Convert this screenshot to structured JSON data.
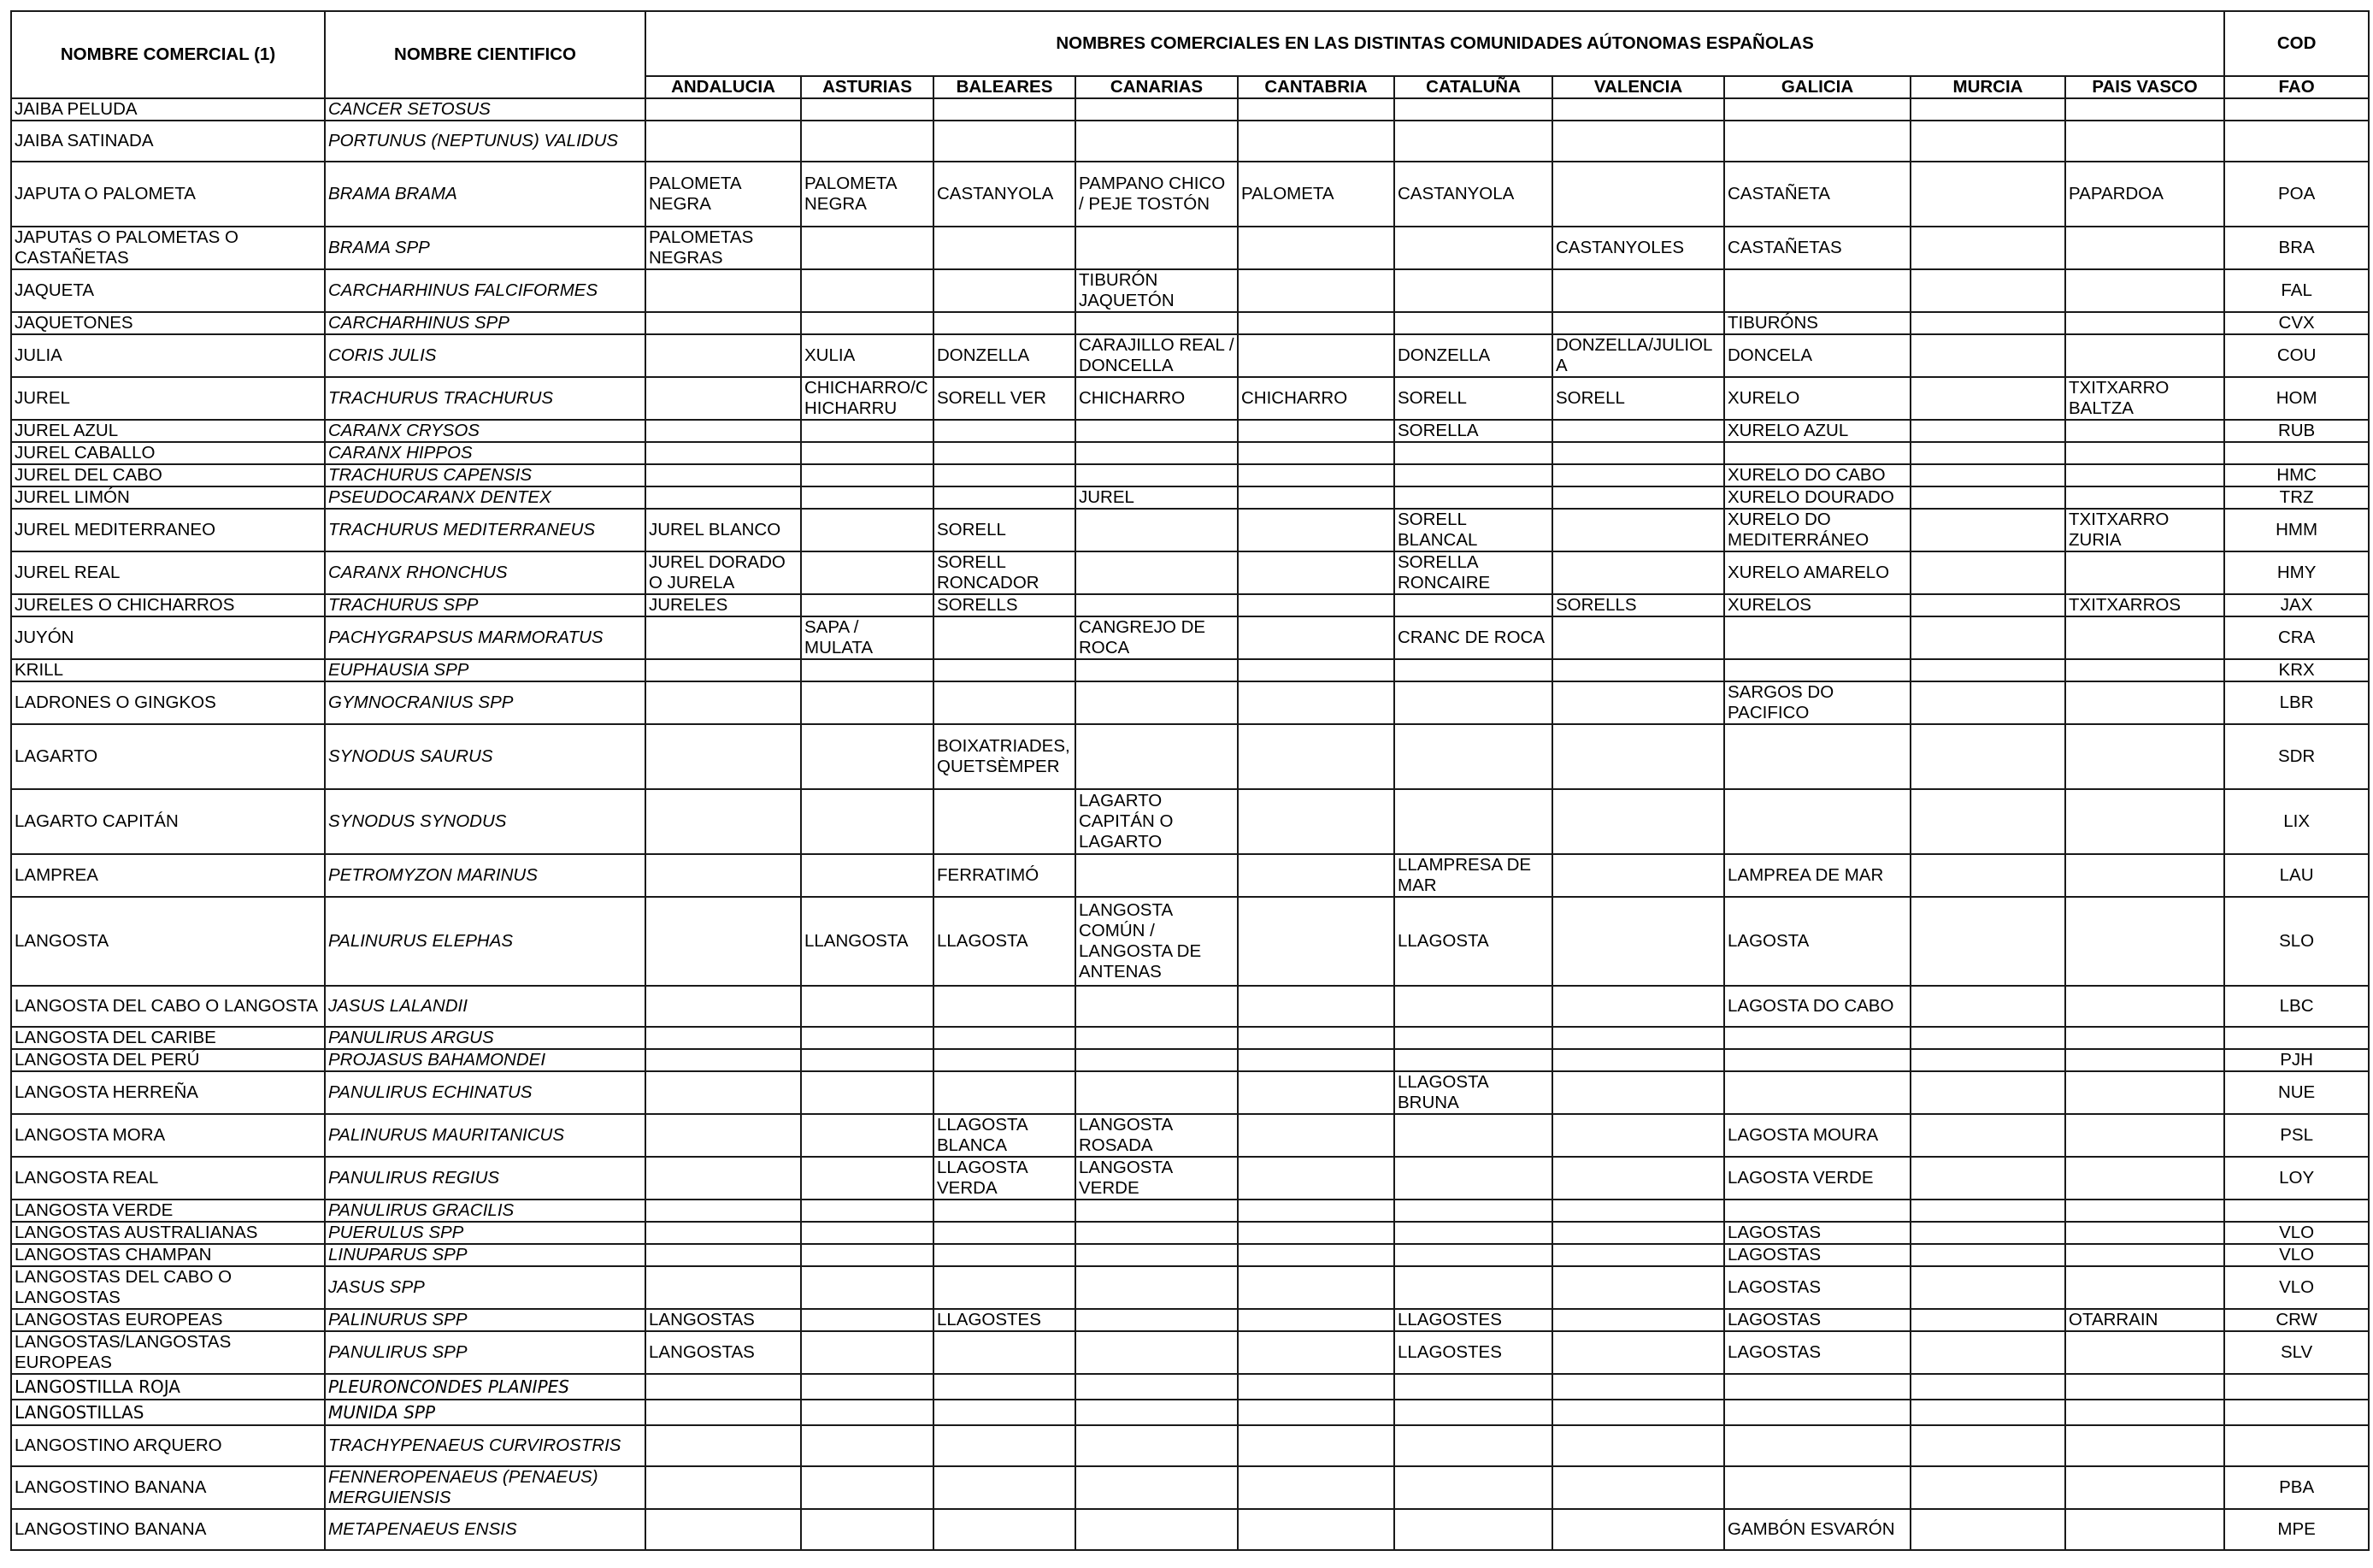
{
  "headers": {
    "comercial": "NOMBRE COMERCIAL (1)",
    "cientifico": "NOMBRE CIENTIFICO",
    "comunidades": "NOMBRES COMERCIALES EN LAS DISTINTAS COMUNIDADES AÚTONOMAS ESPAÑOLAS",
    "cod": "COD",
    "fao": "FAO",
    "regions": [
      "ANDALUCIA",
      "ASTURIAS",
      "BALEARES",
      "CANARIAS",
      "CANTABRIA",
      "CATALUÑA",
      "VALENCIA",
      "GALICIA",
      "MURCIA",
      "PAIS VASCO"
    ]
  },
  "rows": [
    {
      "comercial": "JAIBA PELUDA",
      "cientifico": "CANCER SETOSUS",
      "regions": [
        "",
        "",
        "",
        "",
        "",
        "",
        "",
        "",
        "",
        ""
      ],
      "fao": ""
    },
    {
      "comercial": "JAIBA SATINADA",
      "cientifico": "PORTUNUS (NEPTUNUS) VALIDUS",
      "regions": [
        "",
        "",
        "",
        "",
        "",
        "",
        "",
        "",
        "",
        ""
      ],
      "fao": ""
    },
    {
      "comercial": "JAPUTA O PALOMETA",
      "cientifico": "BRAMA BRAMA",
      "regions": [
        " PALOMETA NEGRA",
        "PALOMETA NEGRA",
        "CASTANYOLA",
        "PAMPANO CHICO / PEJE TOSTÓN",
        "PALOMETA",
        "CASTANYOLA",
        "",
        "CASTAÑETA",
        "",
        "PAPARDOA"
      ],
      "fao": "POA"
    },
    {
      "comercial": "JAPUTAS O PALOMETAS O CASTAÑETAS",
      "cientifico": "BRAMA SPP",
      "regions": [
        "PALOMETAS NEGRAS",
        "",
        "",
        "",
        "",
        "",
        "CASTANYOLES",
        "CASTAÑETAS",
        "",
        ""
      ],
      "fao": "BRA"
    },
    {
      "comercial": "JAQUETA",
      "cientifico": "CARCHARHINUS FALCIFORMES",
      "regions": [
        "",
        "",
        "",
        "TIBURÓN JAQUETÓN",
        "",
        "",
        "",
        "",
        "",
        ""
      ],
      "fao": "FAL"
    },
    {
      "comercial": "JAQUETONES",
      "cientifico": "CARCHARHINUS SPP",
      "regions": [
        "",
        "",
        "",
        "",
        "",
        "",
        "",
        "TIBURÓNS",
        "",
        ""
      ],
      "fao": "CVX"
    },
    {
      "comercial": "JULIA",
      "cientifico": "CORIS JULIS",
      "regions": [
        "",
        "XULIA",
        "DONZELLA",
        "CARAJILLO REAL / DONCELLA",
        "",
        "DONZELLA",
        "DONZELLA/JULIOLA",
        "DONCELA",
        "",
        ""
      ],
      "fao": "COU"
    },
    {
      "comercial": "JUREL",
      "cientifico": "TRACHURUS TRACHURUS",
      "regions": [
        "",
        "CHICHARRO/CHICHARRU",
        "SORELL VER",
        "CHICHARRO",
        "CHICHARRO",
        "SORELL",
        "SORELL",
        "XURELO",
        "",
        "TXITXARRO BALTZA"
      ],
      "fao": "HOM"
    },
    {
      "comercial": "JUREL AZUL",
      "cientifico": "CARANX CRYSOS",
      "regions": [
        "",
        "",
        "",
        "",
        "",
        "SORELLA",
        "",
        "XURELO AZUL",
        "",
        ""
      ],
      "fao": "RUB"
    },
    {
      "comercial": "JUREL CABALLO",
      "cientifico": "CARANX HIPPOS",
      "regions": [
        "",
        "",
        "",
        "",
        "",
        "",
        "",
        "",
        "",
        ""
      ],
      "fao": ""
    },
    {
      "comercial": "JUREL DEL CABO",
      "cientifico": "TRACHURUS CAPENSIS",
      "regions": [
        "",
        "",
        "",
        "",
        "",
        "",
        "",
        "XURELO DO CABO",
        "",
        ""
      ],
      "fao": "HMC"
    },
    {
      "comercial": "JUREL LIMÓN",
      "cientifico": "PSEUDOCARANX DENTEX",
      "regions": [
        "",
        "",
        "",
        "JUREL",
        "",
        "",
        "",
        "XURELO DOURADO",
        "",
        ""
      ],
      "fao": "TRZ"
    },
    {
      "comercial": "JUREL MEDITERRANEO",
      "cientifico": "TRACHURUS MEDITERRANEUS",
      "regions": [
        "JUREL BLANCO",
        "",
        "SORELL",
        "",
        "",
        "SORELL BLANCAL",
        "",
        "XURELO DO MEDITERRÁNEO",
        "",
        "TXITXARRO ZURIA"
      ],
      "fao": "HMM"
    },
    {
      "comercial": "JUREL REAL",
      "cientifico": "CARANX RHONCHUS",
      "regions": [
        "JUREL DORADO O JURELA",
        "",
        "SORELL RONCADOR",
        "",
        "",
        "SORELLA RONCAIRE",
        "",
        "XURELO AMARELO",
        "",
        ""
      ],
      "fao": "HMY"
    },
    {
      "comercial": "JURELES O CHICHARROS",
      "cientifico": "TRACHURUS SPP",
      "regions": [
        "JURELES",
        "",
        "SORELLS",
        "",
        "",
        "",
        "SORELLS",
        "XURELOS",
        "",
        "TXITXARROS"
      ],
      "fao": "JAX"
    },
    {
      "comercial": "JUYÓN",
      "cientifico": "PACHYGRAPSUS MARMORATUS",
      "regions": [
        "",
        "SAPA / MULATA",
        "",
        "CANGREJO DE ROCA",
        "",
        "CRANC DE ROCA",
        "",
        "",
        "",
        ""
      ],
      "fao": "CRA"
    },
    {
      "comercial": "KRILL",
      "cientifico": "EUPHAUSIA SPP",
      "regions": [
        "",
        "",
        "",
        "",
        "",
        "",
        "",
        "",
        "",
        ""
      ],
      "fao": "KRX"
    },
    {
      "comercial": "LADRONES O GINGKOS",
      "cientifico": "GYMNOCRANIUS SPP",
      "regions": [
        "",
        "",
        "",
        "",
        "",
        "",
        "",
        "SARGOS DO PACIFICO",
        "",
        ""
      ],
      "fao": "LBR"
    },
    {
      "comercial": "LAGARTO",
      "cientifico": "SYNODUS SAURUS",
      "regions": [
        "",
        "",
        "BOIXATRIADES, QUETSÈMPER",
        "",
        "",
        "",
        "",
        "",
        "",
        ""
      ],
      "fao": "SDR"
    },
    {
      "comercial": "LAGARTO CAPITÁN",
      "cientifico": "SYNODUS SYNODUS",
      "regions": [
        "",
        "",
        "",
        "LAGARTO CAPITÁN O LAGARTO",
        "",
        "",
        "",
        "",
        "",
        ""
      ],
      "fao": "LIX"
    },
    {
      "comercial": "LAMPREA",
      "cientifico": "PETROMYZON MARINUS",
      "regions": [
        "",
        "",
        "FERRATIMÓ",
        "",
        "",
        "LLAMPRESA DE MAR",
        "",
        "LAMPREA DE MAR",
        "",
        ""
      ],
      "fao": "LAU"
    },
    {
      "comercial": "LANGOSTA",
      "cientifico": "PALINURUS ELEPHAS",
      "regions": [
        "",
        "LLANGOSTA",
        "LLAGOSTA",
        "LANGOSTA COMÚN / LANGOSTA DE ANTENAS",
        "",
        "LLAGOSTA",
        "",
        "LAGOSTA",
        "",
        ""
      ],
      "fao": "SLO"
    },
    {
      "comercial": "LANGOSTA DEL CABO O LANGOSTA",
      "cientifico": "JASUS LALANDII",
      "regions": [
        "",
        "",
        "",
        "",
        "",
        "",
        "",
        "LAGOSTA DO CABO",
        "",
        ""
      ],
      "fao": "LBC"
    },
    {
      "comercial": "LANGOSTA DEL CARIBE",
      "cientifico": "PANULIRUS ARGUS",
      "regions": [
        "",
        "",
        "",
        "",
        "",
        "",
        "",
        "",
        "",
        ""
      ],
      "fao": ""
    },
    {
      "comercial": "LANGOSTA DEL PERÚ",
      "cientifico": "PROJASUS BAHAMONDEI",
      "regions": [
        "",
        "",
        "",
        "",
        "",
        "",
        "",
        "",
        "",
        ""
      ],
      "fao": "PJH"
    },
    {
      "comercial": "LANGOSTA HERREÑA",
      "cientifico": "PANULIRUS ECHINATUS",
      "regions": [
        "",
        "",
        "",
        "",
        "",
        "LLAGOSTA BRUNA",
        "",
        "",
        "",
        ""
      ],
      "fao": "NUE"
    },
    {
      "comercial": "LANGOSTA MORA",
      "cientifico": "PALINURUS MAURITANICUS",
      "regions": [
        "",
        "",
        "LLAGOSTA BLANCA",
        "LANGOSTA ROSADA",
        "",
        "",
        "",
        "LAGOSTA MOURA",
        "",
        ""
      ],
      "fao": "PSL"
    },
    {
      "comercial": "LANGOSTA REAL",
      "cientifico": "PANULIRUS  REGIUS",
      "regions": [
        "",
        "",
        "LLAGOSTA VERDA",
        "LANGOSTA VERDE",
        "",
        "",
        "",
        "LAGOSTA VERDE",
        "",
        ""
      ],
      "fao": "LOY"
    },
    {
      "comercial": "LANGOSTA VERDE",
      "cientifico": "PANULIRUS GRACILIS",
      "regions": [
        "",
        "",
        "",
        "",
        "",
        "",
        "",
        "",
        "",
        ""
      ],
      "fao": ""
    },
    {
      "comercial": "LANGOSTAS AUSTRALIANAS",
      "cientifico": "PUERULUS SPP",
      "regions": [
        "",
        "",
        "",
        "",
        "",
        "",
        "",
        "LAGOSTAS",
        "",
        ""
      ],
      "fao": "VLO"
    },
    {
      "comercial": "LANGOSTAS CHAMPAN",
      "cientifico": "LINUPARUS SPP",
      "regions": [
        "",
        "",
        "",
        "",
        "",
        "",
        "",
        "LAGOSTAS",
        "",
        ""
      ],
      "fao": "VLO"
    },
    {
      "comercial": "LANGOSTAS DEL CABO O LANGOSTAS",
      "cientifico": "JASUS  SPP",
      "regions": [
        "",
        "",
        "",
        "",
        "",
        "",
        "",
        "LAGOSTAS",
        "",
        ""
      ],
      "fao": "VLO"
    },
    {
      "comercial": "LANGOSTAS EUROPEAS",
      "cientifico": "PALINURUS SPP",
      "regions": [
        "LANGOSTAS",
        "",
        "LLAGOSTES",
        "",
        "",
        "LLAGOSTES",
        "",
        "LAGOSTAS",
        "",
        "OTARRAIN"
      ],
      "fao": "CRW"
    },
    {
      "comercial": "LANGOSTAS/LANGOSTAS EUROPEAS",
      "cientifico": "PANULIRUS SPP",
      "regions": [
        "LANGOSTAS",
        "",
        "",
        "",
        "",
        "LLAGOSTES",
        "",
        "LAGOSTAS",
        "",
        ""
      ],
      "fao": "SLV"
    },
    {
      "comercial": "LANGOSTILLA ROJA",
      "cientifico": "PLEURONCONDES PLANIPES",
      "regions": [
        "",
        "",
        "",
        "",
        "",
        "",
        "",
        "",
        "",
        ""
      ],
      "fao": ""
    },
    {
      "comercial": "LANGOSTILLAS",
      "cientifico": "MUNIDA SPP",
      "regions": [
        "",
        "",
        "",
        "",
        "",
        "",
        "",
        "",
        "",
        ""
      ],
      "fao": ""
    },
    {
      "comercial": "LANGOSTINO ARQUERO",
      "cientifico": "TRACHYPENAEUS CURVIROSTRIS",
      "regions": [
        "",
        "",
        "",
        "",
        "",
        "",
        "",
        "",
        "",
        ""
      ],
      "fao": ""
    },
    {
      "comercial": "LANGOSTINO BANANA",
      "cientifico": "FENNEROPENAEUS (PENAEUS) MERGUIENSIS",
      "regions": [
        "",
        "",
        "",
        "",
        "",
        "",
        "",
        "",
        "",
        ""
      ],
      "fao": "PBA"
    },
    {
      "comercial": "LANGOSTINO BANANA",
      "cientifico": "METAPENAEUS ENSIS",
      "regions": [
        "",
        "",
        "",
        "",
        "",
        "",
        "",
        "GAMBÓN ESVARÓN",
        "",
        ""
      ],
      "fao": "MPE"
    }
  ]
}
